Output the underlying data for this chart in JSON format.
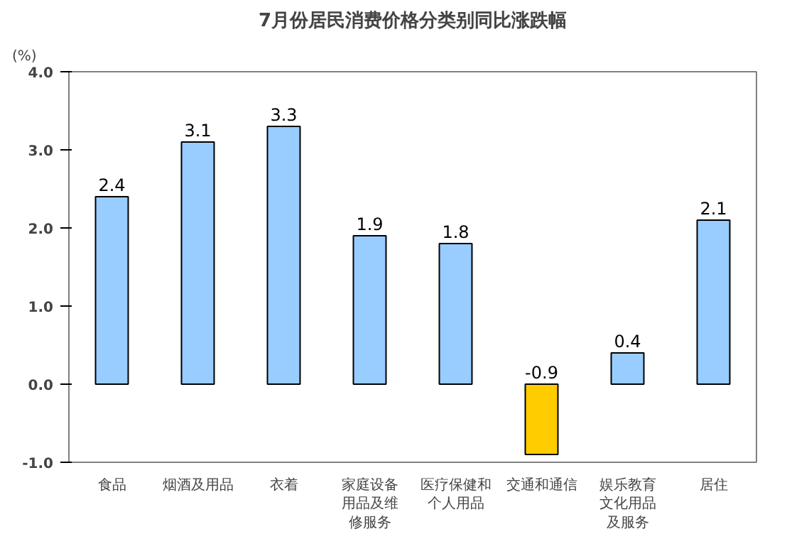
{
  "chart_data": {
    "type": "bar",
    "title": "7月份居民消费价格分类别同比涨跌幅",
    "ylabel": "(%)",
    "categories": [
      "食品",
      "烟酒及用品",
      "衣着",
      "家庭设备用品及维修服务",
      "医疗保健和个人用品",
      "交通和通信",
      "娱乐教育文化用品及服务",
      "居住"
    ],
    "values": [
      2.4,
      3.1,
      3.3,
      1.9,
      1.8,
      -0.9,
      0.4,
      2.1
    ],
    "colors": [
      "#99ccff",
      "#99ccff",
      "#99ccff",
      "#99ccff",
      "#99ccff",
      "#ffcc00",
      "#99ccff",
      "#99ccff"
    ],
    "ylim": [
      -1.0,
      4.0
    ],
    "yticks": [
      {
        "value": -1.0,
        "label": "-1.0"
      },
      {
        "value": 0.0,
        "label": "0.0"
      },
      {
        "value": 1.0,
        "label": "1.0"
      },
      {
        "value": 2.0,
        "label": "2.0"
      },
      {
        "value": 3.0,
        "label": "3.0"
      },
      {
        "value": 4.0,
        "label": "4.0"
      }
    ],
    "grid": false,
    "data_labels": true
  }
}
